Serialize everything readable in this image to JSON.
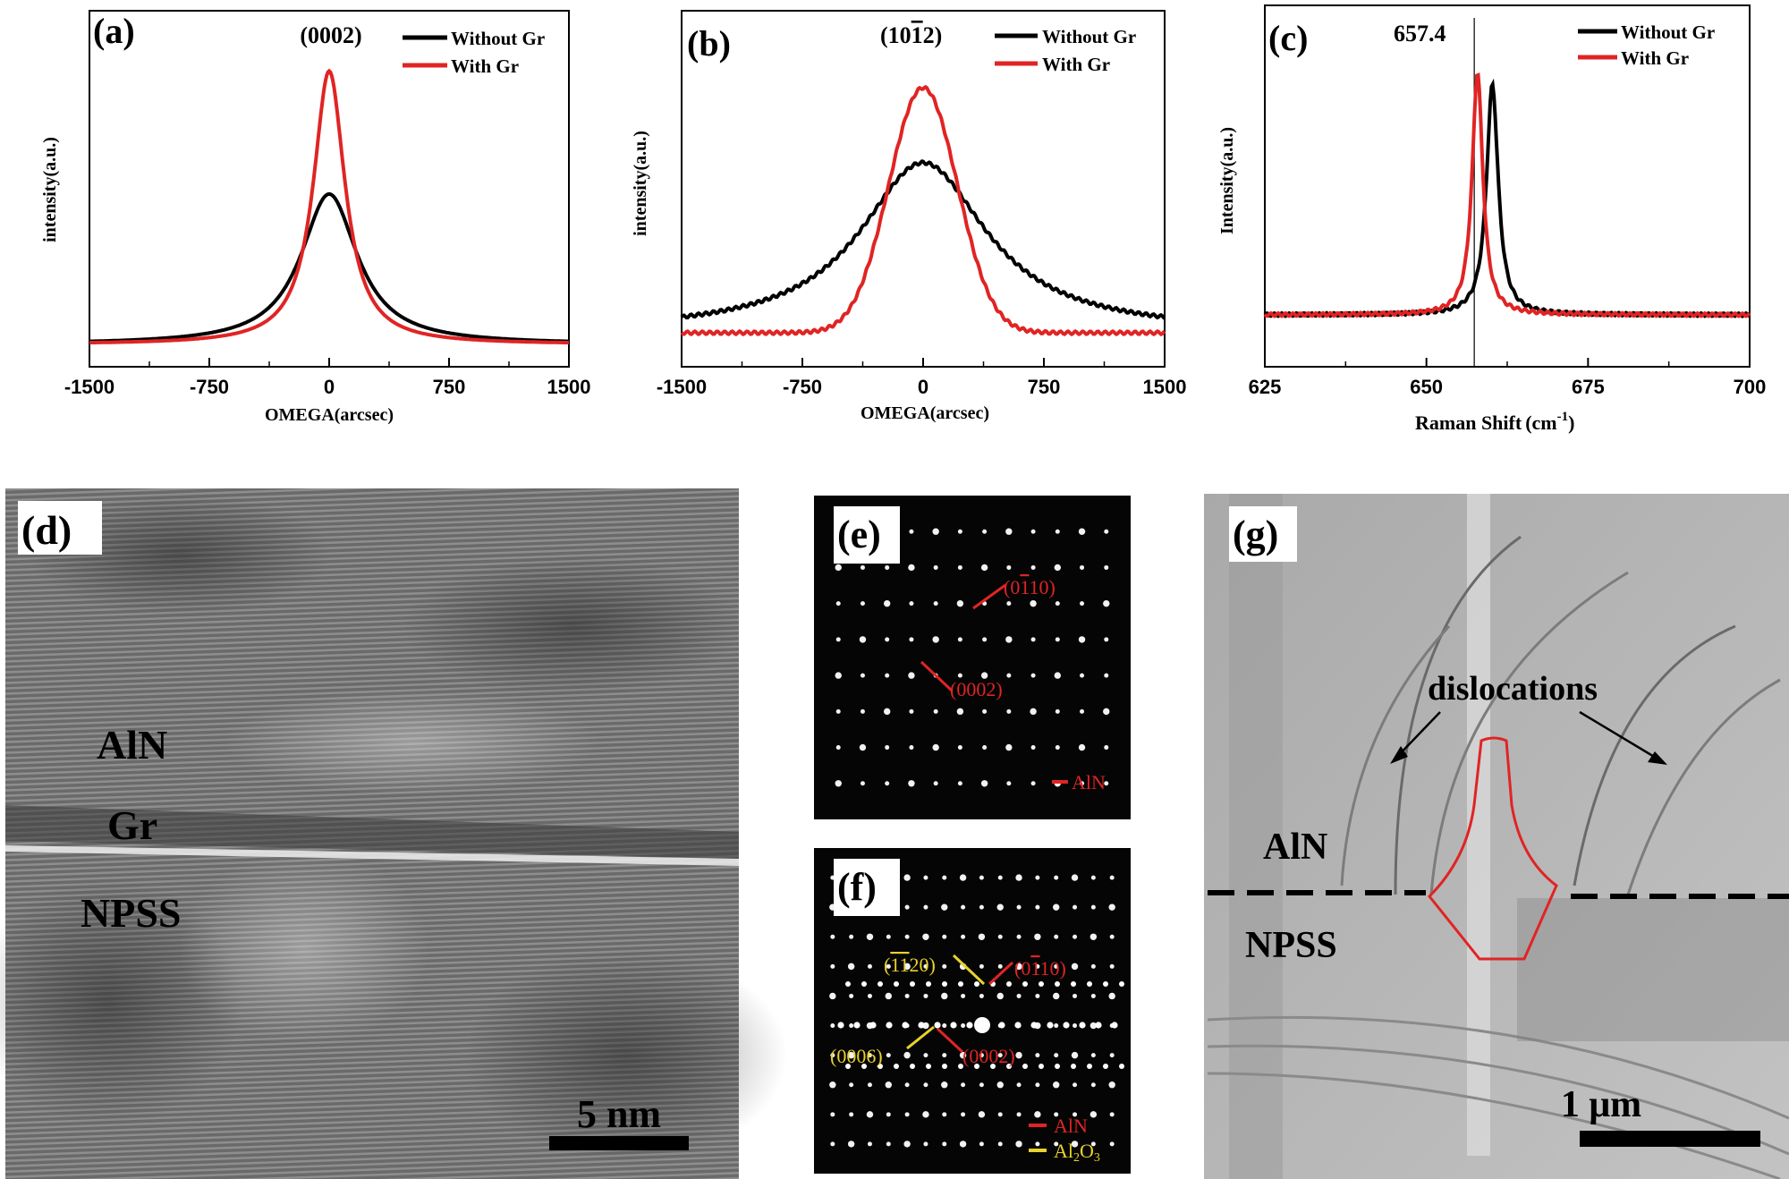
{
  "panel_labels": {
    "a": "(a)",
    "b": "(b)",
    "c": "(c)",
    "d": "(d)",
    "e": "(e)",
    "f": "(f)",
    "g": "(g)"
  },
  "chart_data": [
    {
      "id": "a",
      "type": "line",
      "peak_label": "(0002)",
      "xlabel": "OMEGA(arcsec)",
      "ylabel": "intensity(a.u.)",
      "xlim": [
        -1500,
        1500
      ],
      "ylim": [
        0,
        1.08
      ],
      "xticks": [
        "-1500",
        "-750",
        "0",
        "750",
        "1500"
      ],
      "series": [
        {
          "name": "Without Gr",
          "color": "#000000",
          "shape": "lorentz",
          "center": 0,
          "fwhm": 430,
          "amplitude": 0.55,
          "baseline": 0.0
        },
        {
          "name": "With Gr",
          "color": "#e02424",
          "shape": "lorentz",
          "center": 0,
          "fwhm": 240,
          "amplitude": 1.0,
          "baseline": 0.0
        }
      ]
    },
    {
      "id": "b",
      "type": "line",
      "peak_label": "(10",
      "peak_label_bar": "1",
      "peak_label_end": "2)",
      "xlabel": "OMEGA(arcsec)",
      "ylabel": "intensity(a.u.)",
      "xlim": [
        -1500,
        1500
      ],
      "ylim": [
        0,
        1.08
      ],
      "xticks": [
        "-1500",
        "-750",
        "0",
        "750",
        "1500"
      ],
      "series": [
        {
          "name": "Without Gr",
          "color": "#000000",
          "shape": "lorentz",
          "center": 0,
          "fwhm": 960,
          "amplitude": 0.68,
          "baseline": 0.0
        },
        {
          "name": "With Gr",
          "color": "#e02424",
          "shape": "gauss",
          "center": 0,
          "fwhm": 500,
          "amplitude": 0.98,
          "baseline": 0.0
        }
      ]
    },
    {
      "id": "c",
      "type": "line",
      "peak_label": "657.4",
      "xlabel": "Raman Shift",
      "xlabel_unit": "(cm",
      "xlabel_exp": "-1",
      "xlabel_end": ")",
      "ylabel": "Intensity(a.u.)",
      "xlim": [
        625,
        700
      ],
      "ylim": [
        0,
        1.08
      ],
      "xticks": [
        "625",
        "650",
        "675",
        "700"
      ],
      "reference_line": 657.4,
      "series": [
        {
          "name": "Without Gr",
          "color": "#000000",
          "shape": "lorentz",
          "center": 660.2,
          "fwhm": 2.2,
          "amplitude": 0.92,
          "baseline": 0.0
        },
        {
          "name": "With Gr",
          "color": "#e02424",
          "shape": "lorentz",
          "center": 657.9,
          "fwhm": 2.0,
          "amplitude": 0.97,
          "baseline": 0.0
        }
      ]
    }
  ],
  "micrographs": {
    "d": {
      "layers": [
        "AlN",
        "Gr",
        "NPSS"
      ],
      "scale_bar": "5 nm"
    },
    "e": {
      "spot_labels": [
        "(0",
        "1",
        "10)",
        "(0002)"
      ],
      "legend": "AlN"
    },
    "f": {
      "spot_labels_red": [
        "(0",
        "1",
        "10)",
        "(0002)"
      ],
      "spot_labels_yellow": [
        "(",
        "1",
        "1",
        "20)",
        "(0006)"
      ],
      "legend_aln": "AlN",
      "legend_al2o3": "Al",
      "legend_al2o3_sub": "2",
      "legend_al2o3_end": "O",
      "legend_al2o3_sub2": "3"
    },
    "g": {
      "annotation": "dislocations",
      "top_layer": "AlN",
      "bottom_layer": "NPSS",
      "scale_bar": "1 μm"
    }
  },
  "colors": {
    "red": "#e02424",
    "black": "#000000",
    "yellow": "#e8d22c"
  }
}
